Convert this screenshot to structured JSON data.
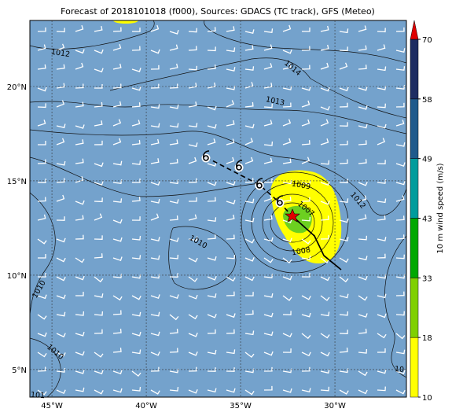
{
  "title": "Forecast of 2018101018 (f000), Sources: GDACS (TC track), GFS (Meteo)",
  "map": {
    "xlim": [
      -46.17,
      -26.21
    ],
    "ylim": [
      3.54,
      23.5
    ],
    "xticks": [
      {
        "value": -45,
        "label": "45°W"
      },
      {
        "value": -40,
        "label": "40°W"
      },
      {
        "value": -35,
        "label": "35°W"
      },
      {
        "value": -30,
        "label": "30°W"
      }
    ],
    "yticks": [
      {
        "value": 5,
        "label": "5°N"
      },
      {
        "value": 10,
        "label": "10°N"
      },
      {
        "value": 15,
        "label": "15°N"
      },
      {
        "value": 20,
        "label": "20°N"
      }
    ],
    "contour_labels": [
      "1012",
      "1014",
      "1013",
      "1009",
      "1007",
      "1012",
      "1010",
      "1008",
      "1010",
      "1010",
      "10",
      "101"
    ]
  },
  "colorbar": {
    "label": "10 m wind speed (m/s)",
    "ticks": [
      10,
      18,
      33,
      43,
      49,
      58,
      70
    ],
    "colors": [
      "#ffff00",
      "#7fd000",
      "#00a800",
      "#009c9c",
      "#1f5a8c",
      "#1e2d62"
    ],
    "extend_color": "#e00000"
  }
}
